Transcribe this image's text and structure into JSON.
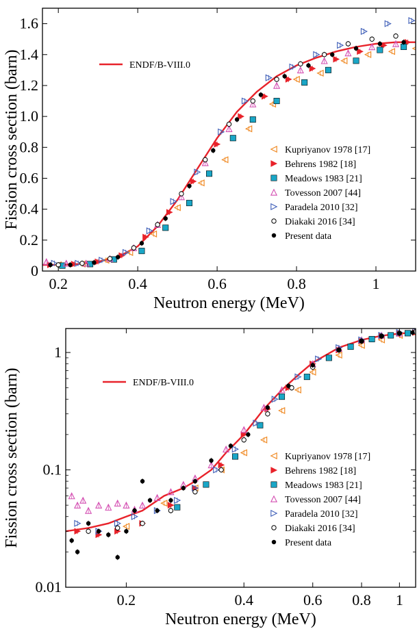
{
  "chart_data": [
    {
      "type": "scatter",
      "xlabel": "Neutron energy (MeV)",
      "ylabel": "Fission cross section (barn)",
      "xlim": [
        0.16,
        1.1
      ],
      "ylim": [
        0,
        1.7
      ],
      "yscale": "linear",
      "xticks": [
        0.2,
        0.4,
        0.6,
        0.8,
        1.0
      ],
      "xtick_labels": [
        "0.2",
        "0.4",
        "0.6",
        "0.8",
        "1"
      ],
      "yticks": [
        0,
        0.2,
        0.4,
        0.6,
        0.8,
        1.0,
        1.2,
        1.4,
        1.6
      ],
      "ytick_labels": [
        "0",
        "0.2",
        "0.4",
        "0.6",
        "0.8",
        "1.0",
        "1.2",
        "1.4",
        "1.6"
      ],
      "evaluated": {
        "name": "ENDF/B-VIII.0",
        "color": "#e8222a",
        "x": [
          0.16,
          0.2,
          0.25,
          0.3,
          0.35,
          0.4,
          0.45,
          0.5,
          0.55,
          0.6,
          0.65,
          0.7,
          0.75,
          0.8,
          0.85,
          0.9,
          0.95,
          1.0,
          1.05,
          1.1
        ],
        "y": [
          0.04,
          0.04,
          0.045,
          0.06,
          0.09,
          0.16,
          0.29,
          0.46,
          0.66,
          0.86,
          1.03,
          1.16,
          1.26,
          1.33,
          1.38,
          1.42,
          1.45,
          1.47,
          1.48,
          1.48
        ]
      },
      "series": [
        {
          "name": "Kupriyanov 1978 [17]",
          "marker": "triangle-left-open",
          "color": "#f08c28",
          "x": [
            0.2,
            0.26,
            0.32,
            0.38,
            0.44,
            0.5,
            0.56,
            0.62,
            0.68,
            0.74,
            0.8,
            0.86,
            0.92,
            0.98,
            1.04,
            1.1
          ],
          "y": [
            0.04,
            0.045,
            0.07,
            0.12,
            0.24,
            0.41,
            0.57,
            0.72,
            0.92,
            1.08,
            1.24,
            1.28,
            1.36,
            1.4,
            1.42,
            1.44
          ]
        },
        {
          "name": "Behrens 1982 [18]",
          "marker": "triangle-right-filled",
          "color": "#e8222a",
          "x": [
            0.18,
            0.24,
            0.3,
            0.36,
            0.42,
            0.48,
            0.54,
            0.6,
            0.66,
            0.72,
            0.78,
            0.84,
            0.9,
            0.96,
            1.02,
            1.08
          ],
          "y": [
            0.04,
            0.045,
            0.06,
            0.1,
            0.22,
            0.38,
            0.58,
            0.82,
            1.0,
            1.13,
            1.24,
            1.31,
            1.37,
            1.42,
            1.46,
            1.48
          ]
        },
        {
          "name": "Meadows 1983 [21]",
          "marker": "square-filled",
          "color": "#1aa6c6",
          "x": [
            0.21,
            0.28,
            0.34,
            0.41,
            0.47,
            0.53,
            0.58,
            0.64,
            0.69,
            0.75,
            0.82,
            0.88,
            0.95,
            1.01,
            1.07
          ],
          "y": [
            0.035,
            0.045,
            0.075,
            0.13,
            0.28,
            0.44,
            0.63,
            0.86,
            0.98,
            1.1,
            1.22,
            1.3,
            1.36,
            1.43,
            1.45
          ]
        },
        {
          "name": "Tovesson 2007 [44]",
          "marker": "triangle-up-open",
          "color": "#d44fb2",
          "x": [
            0.17,
            0.22,
            0.27,
            0.33,
            0.39,
            0.45,
            0.51,
            0.57,
            0.63,
            0.69,
            0.75,
            0.81,
            0.87,
            0.93,
            0.99,
            1.05
          ],
          "y": [
            0.06,
            0.05,
            0.05,
            0.08,
            0.15,
            0.3,
            0.48,
            0.7,
            0.92,
            1.08,
            1.2,
            1.3,
            1.36,
            1.41,
            1.45,
            1.47
          ]
        },
        {
          "name": "Paradela 2010 [32]",
          "marker": "triangle-right-open",
          "color": "#3f5fb8",
          "x": [
            0.19,
            0.25,
            0.31,
            0.37,
            0.43,
            0.49,
            0.55,
            0.61,
            0.67,
            0.73,
            0.79,
            0.85,
            0.91,
            0.97,
            1.03,
            1.09
          ],
          "y": [
            0.05,
            0.05,
            0.07,
            0.12,
            0.26,
            0.45,
            0.64,
            0.9,
            1.1,
            1.25,
            1.32,
            1.4,
            1.46,
            1.55,
            1.6,
            1.62
          ]
        },
        {
          "name": "Diakaki 2016 [34]",
          "marker": "circle-open",
          "color": "#000000",
          "x": [
            0.2,
            0.26,
            0.33,
            0.39,
            0.45,
            0.51,
            0.57,
            0.63,
            0.69,
            0.75,
            0.81,
            0.87,
            0.93,
            0.99,
            1.05
          ],
          "y": [
            0.04,
            0.05,
            0.08,
            0.15,
            0.3,
            0.5,
            0.72,
            0.95,
            1.1,
            1.24,
            1.34,
            1.4,
            1.47,
            1.5,
            1.52
          ]
        },
        {
          "name": "Present data",
          "marker": "circle-filled",
          "color": "#000000",
          "x": [
            0.18,
            0.23,
            0.29,
            0.35,
            0.41,
            0.47,
            0.53,
            0.59,
            0.65,
            0.71,
            0.77,
            0.83,
            0.89,
            0.95,
            1.01,
            1.07
          ],
          "y": [
            0.04,
            0.04,
            0.055,
            0.09,
            0.18,
            0.34,
            0.55,
            0.78,
            0.98,
            1.14,
            1.26,
            1.33,
            1.4,
            1.44,
            1.47,
            1.48
          ]
        }
      ],
      "legend_position": "right-middle"
    },
    {
      "type": "scatter",
      "xlabel": "Neutron energy (MeV)",
      "ylabel": "Fission cross section (barn)",
      "xlim": [
        0.14,
        1.1
      ],
      "ylim": [
        0.01,
        1.6
      ],
      "xscale": "log",
      "yscale": "log",
      "xticks": [
        0.2,
        0.4,
        0.6,
        0.8,
        1.0
      ],
      "xtick_labels": [
        "0.2",
        "0.4",
        "0.6",
        "0.8",
        "1"
      ],
      "yticks": [
        0.01,
        0.1,
        1
      ],
      "ytick_labels": [
        "0.01",
        "0.1",
        "1"
      ],
      "evaluated": {
        "name": "ENDF/B-VIII.0",
        "color": "#e8222a",
        "x": [
          0.14,
          0.16,
          0.18,
          0.2,
          0.22,
          0.25,
          0.28,
          0.3,
          0.33,
          0.36,
          0.4,
          0.45,
          0.5,
          0.55,
          0.6,
          0.7,
          0.8,
          0.9,
          1.0,
          1.1
        ],
        "y": [
          0.03,
          0.032,
          0.035,
          0.04,
          0.045,
          0.06,
          0.07,
          0.08,
          0.1,
          0.14,
          0.2,
          0.33,
          0.48,
          0.64,
          0.82,
          1.1,
          1.28,
          1.39,
          1.45,
          1.48
        ]
      },
      "series": [
        {
          "name": "Kupriyanov 1978 [17]",
          "marker": "triangle-left-open",
          "color": "#f08c28",
          "x": [
            0.2,
            0.25,
            0.3,
            0.35,
            0.4,
            0.45,
            0.5,
            0.55,
            0.6,
            0.7,
            0.8,
            0.9,
            1.0,
            1.1
          ],
          "y": [
            0.033,
            0.052,
            0.07,
            0.1,
            0.14,
            0.18,
            0.32,
            0.48,
            0.68,
            0.95,
            1.15,
            1.28,
            1.4,
            1.45
          ]
        },
        {
          "name": "Behrens 1982 [18]",
          "marker": "triangle-right-filled",
          "color": "#e8222a",
          "x": [
            0.15,
            0.17,
            0.19,
            0.22,
            0.26,
            0.3,
            0.35,
            0.4,
            0.46,
            0.52,
            0.6,
            0.7,
            0.8,
            0.9,
            1.0,
            1.1
          ],
          "y": [
            0.03,
            0.028,
            0.03,
            0.035,
            0.05,
            0.07,
            0.11,
            0.2,
            0.33,
            0.5,
            0.8,
            1.05,
            1.25,
            1.38,
            1.45,
            1.48
          ]
        },
        {
          "name": "Meadows 1983 [21]",
          "marker": "square-filled",
          "color": "#1aa6c6",
          "x": [
            0.27,
            0.32,
            0.38,
            0.44,
            0.5,
            0.58,
            0.66,
            0.75,
            0.85,
            0.95,
            1.05
          ],
          "y": [
            0.048,
            0.075,
            0.13,
            0.24,
            0.42,
            0.62,
            0.9,
            1.12,
            1.3,
            1.4,
            1.46
          ]
        },
        {
          "name": "Tovesson 2007 [44]",
          "marker": "triangle-up-open",
          "color": "#d44fb2",
          "x": [
            0.145,
            0.15,
            0.155,
            0.16,
            0.17,
            0.18,
            0.19,
            0.2,
            0.21,
            0.22,
            0.24,
            0.26,
            0.28,
            0.3,
            0.33,
            0.36,
            0.4,
            0.45,
            0.5,
            0.6,
            0.7,
            0.8,
            0.9,
            1.0
          ],
          "y": [
            0.06,
            0.05,
            0.055,
            0.045,
            0.05,
            0.048,
            0.052,
            0.05,
            0.046,
            0.05,
            0.058,
            0.065,
            0.075,
            0.085,
            0.11,
            0.15,
            0.22,
            0.34,
            0.48,
            0.8,
            1.08,
            1.28,
            1.4,
            1.46
          ]
        },
        {
          "name": "Paradela 2010 [32]",
          "marker": "triangle-right-open",
          "color": "#3f5fb8",
          "x": [
            0.15,
            0.17,
            0.19,
            0.21,
            0.24,
            0.27,
            0.3,
            0.34,
            0.38,
            0.43,
            0.48,
            0.55,
            0.62,
            0.7,
            0.8,
            0.9,
            1.0,
            1.1
          ],
          "y": [
            0.035,
            0.03,
            0.035,
            0.04,
            0.045,
            0.055,
            0.07,
            0.1,
            0.15,
            0.25,
            0.4,
            0.62,
            0.88,
            1.1,
            1.28,
            1.4,
            1.48,
            1.52
          ]
        },
        {
          "name": "Diakaki 2016 [34]",
          "marker": "circle-open",
          "color": "#000000",
          "x": [
            0.16,
            0.19,
            0.22,
            0.26,
            0.3,
            0.35,
            0.4,
            0.46,
            0.53,
            0.6,
            0.7,
            0.8,
            0.9,
            1.0,
            1.1
          ],
          "y": [
            0.03,
            0.032,
            0.035,
            0.045,
            0.065,
            0.1,
            0.18,
            0.3,
            0.5,
            0.75,
            1.05,
            1.25,
            1.38,
            1.46,
            1.5
          ]
        },
        {
          "name": "Present data",
          "marker": "circle-filled",
          "color": "#000000",
          "x": [
            0.145,
            0.15,
            0.16,
            0.17,
            0.18,
            0.19,
            0.2,
            0.21,
            0.22,
            0.23,
            0.24,
            0.26,
            0.28,
            0.3,
            0.33,
            0.37,
            0.41,
            0.46,
            0.52,
            0.6,
            0.7,
            0.8,
            0.9,
            1.0,
            1.08
          ],
          "y": [
            0.025,
            0.02,
            0.035,
            0.03,
            0.028,
            0.018,
            0.03,
            0.045,
            0.08,
            0.055,
            0.045,
            0.055,
            0.07,
            0.08,
            0.12,
            0.16,
            0.2,
            0.34,
            0.52,
            0.78,
            1.05,
            1.25,
            1.38,
            1.45,
            1.48
          ]
        }
      ],
      "legend_position": "right-middle"
    }
  ]
}
